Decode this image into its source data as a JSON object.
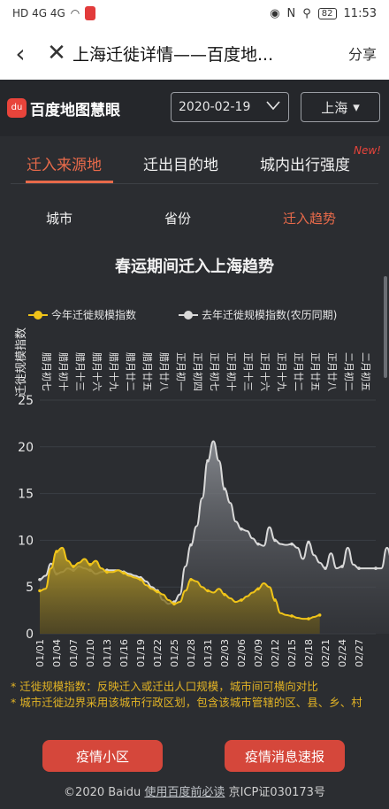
{
  "statusbar": {
    "left": "HD 4G 4G",
    "battery": "82",
    "time": "11:53"
  },
  "navbar": {
    "title": "上海迁徙详情——百度地...",
    "share": "分享"
  },
  "brand": {
    "logo_mark": "du",
    "logo_text": "百度地图慧眼",
    "date": "2020-02-19",
    "city": "上海"
  },
  "tabs": [
    {
      "label": "迁入来源地",
      "active": true
    },
    {
      "label": "迁出目的地",
      "active": false
    },
    {
      "label": "城内出行强度",
      "active": false
    }
  ],
  "new_badge": "New!",
  "subtabs": [
    {
      "label": "城市",
      "active": false
    },
    {
      "label": "省份",
      "active": false
    },
    {
      "label": "迁入趋势",
      "active": true
    }
  ],
  "colors": {
    "accent": "#e86a4a",
    "series_this_year": "#f0c419",
    "series_last_year": "#d9d9d9"
  },
  "chart_data": {
    "type": "area",
    "title": "春运期间迁入上海趋势",
    "ylabel": "迁徙规模指数",
    "ylim": [
      0,
      25
    ],
    "yticks": [
      0,
      5,
      10,
      15,
      20,
      25
    ],
    "x_ticks_bottom": [
      "01/01",
      "01/04",
      "01/07",
      "01/10",
      "01/13",
      "01/16",
      "01/19",
      "01/22",
      "01/25",
      "01/28",
      "01/31",
      "02/03",
      "02/06",
      "02/09",
      "02/12",
      "02/15",
      "02/18",
      "02/21",
      "02/24",
      "02/27"
    ],
    "x_ticks_top": [
      "腊月初七",
      "腊月初十",
      "腊月十三",
      "腊月十六",
      "腊月十九",
      "腊月廿二",
      "腊月廿五",
      "腊月廿八",
      "正月初一",
      "正月初四",
      "正月初七",
      "正月初十",
      "正月十三",
      "正月十六",
      "正月十九",
      "正月廿二",
      "正月廿五",
      "正月廿八",
      "二月初二",
      "二月初五"
    ],
    "series": [
      {
        "name": "今年迁徙规模指数",
        "start_day": 0,
        "values": [
          4.6,
          4.8,
          7.0,
          8.8,
          9.2,
          7.8,
          7.2,
          7.6,
          8.0,
          7.4,
          7.8,
          7.0,
          6.6,
          6.6,
          6.8,
          6.5,
          6.2,
          6.0,
          5.8,
          5.2,
          4.8,
          4.5,
          4.2,
          3.6,
          3.2,
          3.4,
          4.6,
          5.8,
          5.6,
          5.0,
          4.6,
          4.4,
          4.8,
          4.2,
          3.8,
          3.4,
          3.6,
          4.0,
          4.4,
          4.8,
          5.4,
          5.0,
          3.6,
          2.2,
          2.0,
          1.9,
          1.7,
          1.6,
          1.6,
          1.8,
          2.0
        ]
      },
      {
        "name": "去年迁徙规模指数(农历同期)",
        "start_day": 0,
        "values": [
          5.8,
          6.2,
          7.5,
          6.4,
          6.6,
          7.0,
          6.8,
          7.2,
          7.0,
          6.8,
          6.4,
          6.6,
          6.8,
          6.8,
          6.8,
          6.6,
          6.4,
          6.2,
          6.0,
          5.6,
          5.0,
          4.6,
          3.6,
          3.2,
          3.4,
          4.2,
          7.2,
          9.5,
          11.5,
          14.5,
          18.5,
          20.6,
          18.5,
          15.5,
          14.0,
          12.0,
          11.2,
          11.0,
          10.2,
          9.6,
          9.4,
          11.4,
          10.0,
          9.6,
          9.5,
          9.6,
          9.2,
          8.0,
          9.8,
          8.4,
          7.6,
          7.0,
          8.6,
          7.0,
          7.2,
          9.2,
          7.4,
          7.0,
          7.0,
          7.0,
          7.0,
          7.0,
          9.2,
          7.6,
          7.2
        ]
      }
    ]
  },
  "notes": [
    "* 迁徙规模指数：反映迁入或迁出人口规模，城市间可横向对比",
    "* 城市迁徙边界采用该城市行政区划，包含该城市管辖的区、县、乡、村"
  ],
  "buttons": {
    "left": "疫情小区",
    "right": "疫情消息速报"
  },
  "footer": {
    "copyright": "©2020 Baidu",
    "link": "使用百度前必读",
    "icp": "京ICP证030173号"
  }
}
